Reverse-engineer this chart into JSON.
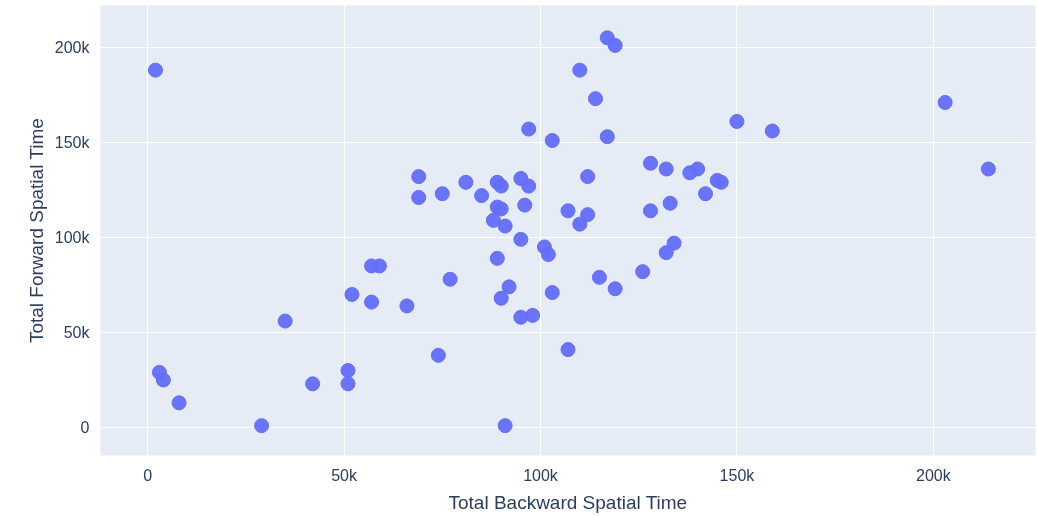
{
  "chart_data": {
    "type": "scatter",
    "xlabel": "Total Backward Spatial Time",
    "ylabel": "Total Forward Spatial Time",
    "xlim": [
      -12000,
      226000
    ],
    "ylim": [
      -14700,
      222000
    ],
    "xticks": [
      {
        "value": 0,
        "label": "0"
      },
      {
        "value": 50000,
        "label": "50k"
      },
      {
        "value": 100000,
        "label": "100k"
      },
      {
        "value": 150000,
        "label": "150k"
      },
      {
        "value": 200000,
        "label": "200k"
      }
    ],
    "yticks": [
      {
        "value": 0,
        "label": "0"
      },
      {
        "value": 50000,
        "label": "50k"
      },
      {
        "value": 100000,
        "label": "100k"
      },
      {
        "value": 150000,
        "label": "150k"
      },
      {
        "value": 200000,
        "label": "200k"
      }
    ],
    "grid": true,
    "marker": "circle",
    "series": [
      {
        "color": "#636efa",
        "x": [
          2000,
          3000,
          4000,
          8000,
          29000,
          35000,
          42000,
          51000,
          51000,
          52000,
          57000,
          57000,
          59000,
          66000,
          69000,
          69000,
          74000,
          75000,
          77000,
          81000,
          85000,
          88000,
          89000,
          89000,
          90000,
          89000,
          90000,
          91000,
          90000,
          92000,
          91000,
          95000,
          97000,
          95000,
          96000,
          97000,
          95000,
          98000,
          101000,
          102000,
          103000,
          103000,
          107000,
          107000,
          110000,
          110000,
          112000,
          112000,
          114000,
          115000,
          117000,
          117000,
          119000,
          119000,
          126000,
          128000,
          128000,
          132000,
          132000,
          133000,
          134000,
          138000,
          140000,
          142000,
          145000,
          146000,
          150000,
          159000,
          203000,
          214000
        ],
        "values": [
          188000,
          29000,
          25000,
          13000,
          1000,
          56000,
          23000,
          30000,
          23000,
          70000,
          66000,
          85000,
          85000,
          64000,
          132000,
          121000,
          38000,
          123000,
          78000,
          129000,
          122000,
          109000,
          89000,
          129000,
          127000,
          116000,
          115000,
          106000,
          68000,
          74000,
          1000,
          131000,
          157000,
          99000,
          117000,
          127000,
          58000,
          59000,
          95000,
          91000,
          151000,
          71000,
          41000,
          114000,
          188000,
          107000,
          112000,
          132000,
          173000,
          79000,
          153000,
          205000,
          201000,
          73000,
          82000,
          139000,
          114000,
          92000,
          136000,
          118000,
          97000,
          134000,
          136000,
          123000,
          130000,
          129000,
          161000,
          156000,
          171000,
          136000
        ]
      }
    ]
  }
}
